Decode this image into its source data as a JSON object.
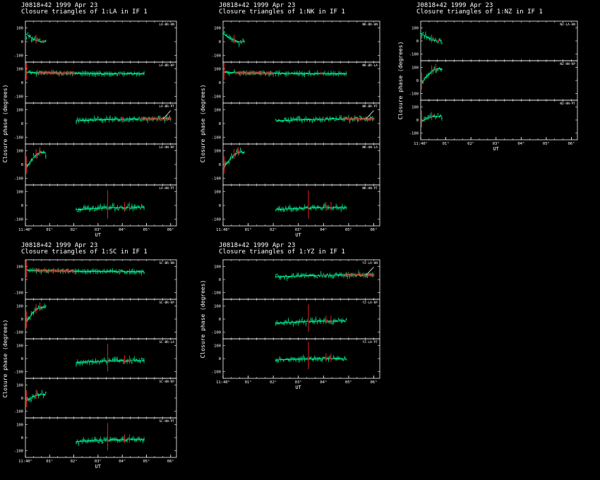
{
  "colors": {
    "background": "#000000",
    "axes": "#ffffff",
    "model": "#00ff99",
    "flagged": "#ff2222",
    "fit": "#ffffff"
  },
  "chart_data": [
    {
      "type": "scatter",
      "title": "J0818+42  1999 Apr 23",
      "subtitle": "Closure triangles of 1:LA in IF 1",
      "ylabel": "Closure phase  (degrees)",
      "xlabel": "UT",
      "x_ticks": [
        "11:40ʰ",
        "01ʰ",
        "02ʰ",
        "03ʰ",
        "04ʰ",
        "05ʰ",
        "06ʰ"
      ],
      "panels": [
        {
          "triangle": "LA-BR-HN",
          "ylim": [
            -150,
            150
          ],
          "yticks": [
            "100",
            "0",
            "-100"
          ],
          "start": 0.0,
          "end": 0.42,
          "level": 60,
          "trend": -60,
          "noise": 14,
          "red_spikes": [
            [
              0.22,
              40
            ],
            [
              0.36,
              10
            ]
          ],
          "red_band": null
        },
        {
          "triangle": "LA-BR-KP",
          "ylim": [
            -150,
            150
          ],
          "yticks": [
            "100",
            "0",
            "-100"
          ],
          "start": 0.0,
          "end": 2.45,
          "level": 75,
          "trend": -10,
          "noise": 6,
          "red_spikes": [
            [
              0.02,
              90
            ],
            [
              1.95,
              15
            ]
          ],
          "red_band": [
            0.25,
            1.0
          ]
        },
        {
          "triangle": "LA-BR-PT",
          "ylim": [
            -150,
            150
          ],
          "yticks": [
            "100",
            "0",
            "-100"
          ],
          "start": 1.05,
          "end": 3.0,
          "level": 20,
          "trend": 15,
          "noise": 10,
          "red_spikes": [
            [
              2.0,
              20
            ]
          ],
          "red_band": [
            2.4,
            3.0
          ]
        },
        {
          "triangle": "LA-HN-KP",
          "ylim": [
            -150,
            150
          ],
          "yticks": [
            "100",
            "0",
            "-100"
          ],
          "start": 0.02,
          "end": 0.42,
          "level": -20,
          "trend": 110,
          "noise": 14,
          "red_spikes": [
            [
              0.02,
              80
            ],
            [
              0.22,
              45
            ],
            [
              0.3,
              40
            ]
          ],
          "red_band": null
        },
        {
          "triangle": "LA-HN-PT",
          "ylim": [
            -150,
            150
          ],
          "yticks": [
            "100",
            "0",
            "-100"
          ],
          "start": 1.05,
          "end": 2.45,
          "level": -30,
          "trend": 15,
          "noise": 10,
          "red_spikes": [
            [
              1.7,
              130
            ],
            [
              2.05,
              40
            ],
            [
              2.15,
              40
            ]
          ],
          "red_band": null
        }
      ]
    },
    {
      "type": "scatter",
      "title": "J0818+42  1999 Apr 23",
      "subtitle": "Closure triangles of 1:NK in IF 1",
      "ylabel": "Closure phase  (degrees)",
      "xlabel": "UT",
      "x_ticks": [
        "11:40ʰ",
        "01ʰ",
        "02ʰ",
        "03ʰ",
        "04ʰ",
        "05ʰ",
        "06ʰ"
      ],
      "panels": [
        {
          "triangle": "NK-BR-HN",
          "ylim": [
            -150,
            150
          ],
          "yticks": [
            "100",
            "0",
            "-100"
          ],
          "start": 0.0,
          "end": 0.42,
          "level": 60,
          "trend": -60,
          "noise": 14,
          "red_spikes": [
            [
              0.22,
              40
            ],
            [
              0.36,
              10
            ]
          ],
          "red_band": null
        },
        {
          "triangle": "NK-BR-LA",
          "ylim": [
            -150,
            150
          ],
          "yticks": [
            "100",
            "0",
            "-100"
          ],
          "start": 0.0,
          "end": 2.45,
          "level": 75,
          "trend": -10,
          "noise": 6,
          "red_spikes": [
            [
              0.02,
              90
            ],
            [
              1.95,
              15
            ]
          ],
          "red_band": [
            0.25,
            1.0
          ]
        },
        {
          "triangle": "NK-BR-PT",
          "ylim": [
            -150,
            150
          ],
          "yticks": [
            "100",
            "0",
            "-100"
          ],
          "start": 1.05,
          "end": 3.0,
          "level": 20,
          "trend": 15,
          "noise": 10,
          "red_spikes": [
            [
              2.0,
              20
            ]
          ],
          "red_band": [
            2.4,
            3.0
          ]
        },
        {
          "triangle": "NK-HN-LA",
          "ylim": [
            -150,
            150
          ],
          "yticks": [
            "100",
            "0",
            "-100"
          ],
          "start": 0.02,
          "end": 0.42,
          "level": -20,
          "trend": 110,
          "noise": 14,
          "red_spikes": [
            [
              0.02,
              80
            ],
            [
              0.22,
              45
            ],
            [
              0.3,
              40
            ]
          ],
          "red_band": null
        },
        {
          "triangle": "NK-HN-PT",
          "ylim": [
            -150,
            150
          ],
          "yticks": [
            "100",
            "0",
            "-100"
          ],
          "start": 1.05,
          "end": 2.45,
          "level": -30,
          "trend": 15,
          "noise": 10,
          "red_spikes": [
            [
              1.7,
              130
            ],
            [
              2.05,
              40
            ],
            [
              2.15,
              40
            ]
          ],
          "red_band": null
        }
      ]
    },
    {
      "type": "scatter",
      "title": "J0818+42  1999 Apr 23",
      "subtitle": "Closure triangles of 1:NZ in IF 1",
      "ylabel": "Closure phase  (degrees)",
      "xlabel": "UT",
      "x_ticks": [
        "11:40ʰ",
        "01ʰ",
        "02ʰ",
        "03ʰ",
        "04ʰ",
        "05ʰ",
        "06ʰ"
      ],
      "panels": [
        {
          "triangle": "NZ-LA-HN",
          "ylim": [
            -150,
            150
          ],
          "yticks": [
            "100",
            "0",
            "-100"
          ],
          "start": 0.0,
          "end": 0.42,
          "level": 60,
          "trend": -60,
          "noise": 14,
          "red_spikes": [
            [
              0.22,
              40
            ],
            [
              0.36,
              10
            ]
          ],
          "red_band": null
        },
        {
          "triangle": "NZ-HN-KP",
          "ylim": [
            -150,
            150
          ],
          "yticks": [
            "100",
            "0",
            "-100"
          ],
          "start": 0.02,
          "end": 0.42,
          "level": -20,
          "trend": 110,
          "noise": 14,
          "red_spikes": [
            [
              0.02,
              80
            ],
            [
              0.22,
              45
            ],
            [
              0.3,
              40
            ]
          ],
          "red_band": null
        },
        {
          "triangle": "NZ-HN-PT",
          "ylim": [
            -150,
            150
          ],
          "yticks": [
            "100",
            "0",
            "-100"
          ],
          "start": 0.02,
          "end": 0.42,
          "level": -10,
          "trend": 40,
          "noise": 12,
          "red_spikes": [
            [
              0.02,
              80
            ],
            [
              0.22,
              40
            ]
          ],
          "red_band": null
        }
      ]
    },
    {
      "type": "scatter",
      "title": "J0818+42  1999 Apr 23",
      "subtitle": "Closure triangles of 1:SC in IF 1",
      "ylabel": "Closure phase  (degrees)",
      "xlabel": "UT",
      "x_ticks": [
        "11:40ʰ",
        "01ʰ",
        "02ʰ",
        "03ʰ",
        "04ʰ",
        "05ʰ",
        "06ʰ"
      ],
      "panels": [
        {
          "triangle": "SC-BR-HN",
          "ylim": [
            -150,
            150
          ],
          "yticks": [
            "100",
            "0",
            "-100"
          ],
          "start": 0.0,
          "end": 2.45,
          "level": 70,
          "trend": -10,
          "noise": 6,
          "red_spikes": [
            [
              0.02,
              90
            ],
            [
              1.95,
              15
            ]
          ],
          "red_band": [
            0.2,
            1.0
          ]
        },
        {
          "triangle": "SC-BR-KP",
          "ylim": [
            -150,
            150
          ],
          "yticks": [
            "100",
            "0",
            "-100"
          ],
          "start": 0.02,
          "end": 0.42,
          "level": -20,
          "trend": 110,
          "noise": 14,
          "red_spikes": [
            [
              0.02,
              80
            ],
            [
              0.22,
              45
            ],
            [
              0.3,
              40
            ]
          ],
          "red_band": null
        },
        {
          "triangle": "SC-BR-LA",
          "ylim": [
            -150,
            150
          ],
          "yticks": [
            "100",
            "0",
            "-100"
          ],
          "start": 1.05,
          "end": 2.45,
          "level": -30,
          "trend": 15,
          "noise": 10,
          "red_spikes": [
            [
              1.7,
              130
            ],
            [
              2.05,
              40
            ],
            [
              2.15,
              40
            ]
          ],
          "red_band": null
        },
        {
          "triangle": "SC-HN-KP",
          "ylim": [
            -150,
            150
          ],
          "yticks": [
            "100",
            "0",
            "-100"
          ],
          "start": 0.02,
          "end": 0.42,
          "level": -20,
          "trend": 50,
          "noise": 14,
          "red_spikes": [
            [
              0.02,
              80
            ],
            [
              0.22,
              45
            ]
          ],
          "red_band": null
        },
        {
          "triangle": "SC-HN-PT",
          "ylim": [
            -150,
            150
          ],
          "yticks": [
            "100",
            "0",
            "-100"
          ],
          "start": 1.05,
          "end": 2.45,
          "level": -30,
          "trend": 15,
          "noise": 10,
          "red_spikes": [
            [
              1.7,
              130
            ],
            [
              2.05,
              40
            ],
            [
              2.15,
              40
            ]
          ],
          "red_band": null
        }
      ]
    },
    {
      "type": "scatter",
      "title": "J0818+42  1999 Apr 23",
      "subtitle": "Closure triangles of 1:YZ in IF 1",
      "ylabel": "Closure phase  (degrees)",
      "xlabel": "UT",
      "x_ticks": [
        "11:40ʰ",
        "01ʰ",
        "02ʰ",
        "03ʰ",
        "04ʰ",
        "05ʰ",
        "06ʰ"
      ],
      "panels": [
        {
          "triangle": "YZ-LA-HN",
          "ylim": [
            -150,
            150
          ],
          "yticks": [
            "100",
            "0",
            "-100"
          ],
          "start": 1.05,
          "end": 3.0,
          "level": 20,
          "trend": 15,
          "noise": 10,
          "red_spikes": [
            [
              2.0,
              20
            ]
          ],
          "red_band": [
            2.4,
            3.0
          ]
        },
        {
          "triangle": "YZ-LA-KP",
          "ylim": [
            -150,
            150
          ],
          "yticks": [
            "100",
            "0",
            "-100"
          ],
          "start": 1.05,
          "end": 2.45,
          "level": -30,
          "trend": 15,
          "noise": 10,
          "red_spikes": [
            [
              1.7,
              130
            ],
            [
              2.05,
              40
            ],
            [
              2.15,
              40
            ]
          ],
          "red_band": null
        },
        {
          "triangle": "YZ-LA-PT",
          "ylim": [
            -150,
            150
          ],
          "yticks": [
            "100",
            "0",
            "-100"
          ],
          "start": 1.05,
          "end": 2.45,
          "level": -10,
          "trend": 10,
          "noise": 10,
          "red_spikes": [
            [
              1.7,
              130
            ],
            [
              2.05,
              40
            ],
            [
              2.15,
              40
            ]
          ],
          "red_band": null
        }
      ]
    }
  ]
}
